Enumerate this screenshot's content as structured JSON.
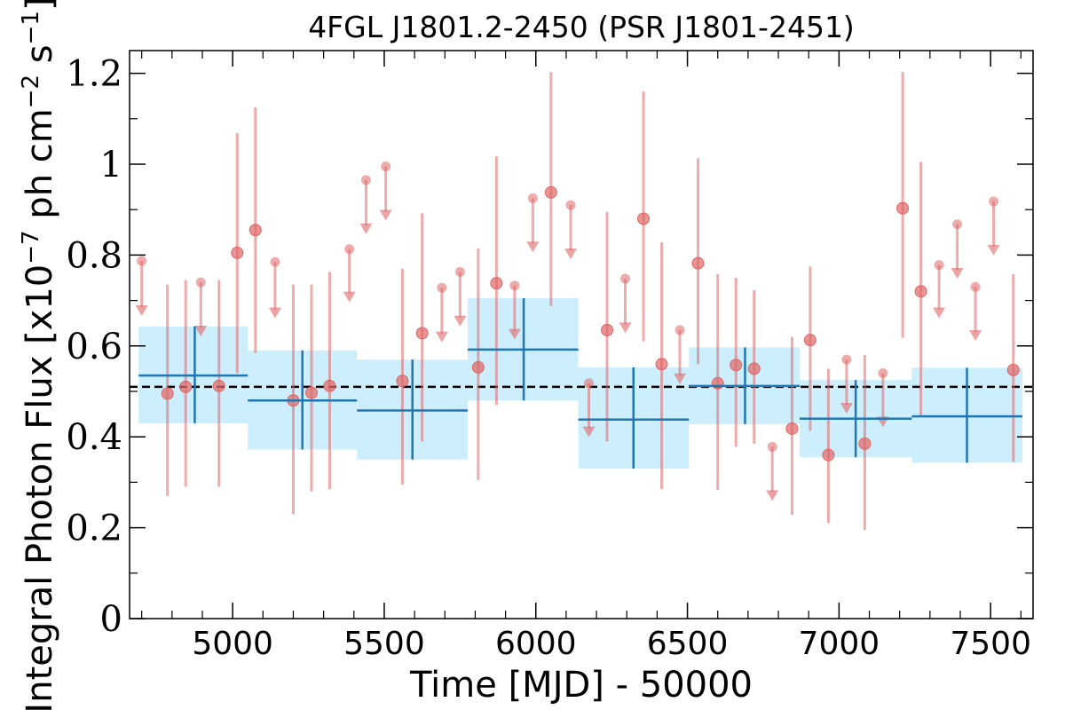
{
  "chart_data": {
    "type": "scatter",
    "title": "4FGL J1801.2-2450 (PSR J1801-2451)",
    "xlabel": "Time [MJD] - 50000",
    "ylabel": {
      "main": "Integral Photon Flux [x10",
      "exp1": "−7",
      "mid": " ph cm",
      "exp2": "−2",
      "mid2": " s",
      "exp3": "−1",
      "end": "]"
    },
    "xlim": [
      4660,
      7640
    ],
    "ylim": [
      0,
      1.25
    ],
    "xticks": [
      {
        "value": 5000,
        "label": "5000"
      },
      {
        "value": 5500,
        "label": "5500"
      },
      {
        "value": 6000,
        "label": "6000"
      },
      {
        "value": 6500,
        "label": "6500"
      },
      {
        "value": 7000,
        "label": "7000"
      },
      {
        "value": 7500,
        "label": "7500"
      }
    ],
    "yticks": [
      {
        "value": 0,
        "label": "0"
      },
      {
        "value": 0.2,
        "label": "0.2"
      },
      {
        "value": 0.4,
        "label": "0.4"
      },
      {
        "value": 0.6,
        "label": "0.6"
      },
      {
        "value": 0.8,
        "label": "0.8"
      },
      {
        "value": 1.0,
        "label": "1"
      },
      {
        "value": 1.2,
        "label": "1.2"
      }
    ],
    "grid": false,
    "average_flux": 0.51,
    "colors": {
      "points": "#e06666",
      "bins_fill": "#cdeefc",
      "bins_line": "#1f77b4",
      "average_line": "#000000"
    },
    "series": [
      {
        "kind": "short-bin points (detections)",
        "points": [
          {
            "x": 4785,
            "y": 0.495,
            "ylo": 0.27,
            "yhi": 0.735
          },
          {
            "x": 4845,
            "y": 0.51,
            "ylo": 0.29,
            "yhi": 0.745
          },
          {
            "x": 4955,
            "y": 0.512,
            "ylo": 0.29,
            "yhi": 0.745
          },
          {
            "x": 5015,
            "y": 0.805,
            "ylo": 0.54,
            "yhi": 1.068
          },
          {
            "x": 5075,
            "y": 0.855,
            "ylo": 0.585,
            "yhi": 1.125
          },
          {
            "x": 5200,
            "y": 0.48,
            "ylo": 0.23,
            "yhi": 0.735
          },
          {
            "x": 5260,
            "y": 0.497,
            "ylo": 0.28,
            "yhi": 0.735
          },
          {
            "x": 5320,
            "y": 0.512,
            "ylo": 0.285,
            "yhi": 0.763
          },
          {
            "x": 5560,
            "y": 0.523,
            "ylo": 0.295,
            "yhi": 0.77
          },
          {
            "x": 5625,
            "y": 0.628,
            "ylo": 0.39,
            "yhi": 0.892
          },
          {
            "x": 5810,
            "y": 0.553,
            "ylo": 0.305,
            "yhi": 0.815
          },
          {
            "x": 5870,
            "y": 0.738,
            "ylo": 0.47,
            "yhi": 1.017
          },
          {
            "x": 6050,
            "y": 0.938,
            "ylo": 0.688,
            "yhi": 1.203
          },
          {
            "x": 6235,
            "y": 0.635,
            "ylo": 0.39,
            "yhi": 0.895
          },
          {
            "x": 6355,
            "y": 0.88,
            "ylo": 0.61,
            "yhi": 1.16
          },
          {
            "x": 6415,
            "y": 0.56,
            "ylo": 0.285,
            "yhi": 0.828
          },
          {
            "x": 6535,
            "y": 0.782,
            "ylo": 0.56,
            "yhi": 1.013
          },
          {
            "x": 6600,
            "y": 0.518,
            "ylo": 0.283,
            "yhi": 0.758
          },
          {
            "x": 6660,
            "y": 0.558,
            "ylo": 0.378,
            "yhi": 0.75
          },
          {
            "x": 6720,
            "y": 0.55,
            "ylo": 0.385,
            "yhi": 0.723
          },
          {
            "x": 6845,
            "y": 0.418,
            "ylo": 0.228,
            "yhi": 0.62
          },
          {
            "x": 6905,
            "y": 0.613,
            "ylo": 0.413,
            "yhi": 0.775
          },
          {
            "x": 6965,
            "y": 0.36,
            "ylo": 0.21,
            "yhi": 0.55
          },
          {
            "x": 7085,
            "y": 0.385,
            "ylo": 0.195,
            "yhi": 0.58
          },
          {
            "x": 7210,
            "y": 0.903,
            "ylo": 0.618,
            "yhi": 1.203
          },
          {
            "x": 7270,
            "y": 0.72,
            "ylo": 0.445,
            "yhi": 1.005
          },
          {
            "x": 7575,
            "y": 0.547,
            "ylo": 0.345,
            "yhi": 0.758
          }
        ]
      },
      {
        "kind": "short-bin upper limits",
        "points": [
          {
            "x": 4700,
            "y": 0.787,
            "limit": 0.67
          },
          {
            "x": 4895,
            "y": 0.74,
            "limit": 0.625
          },
          {
            "x": 5140,
            "y": 0.785,
            "limit": 0.665
          },
          {
            "x": 5385,
            "y": 0.813,
            "limit": 0.7
          },
          {
            "x": 5440,
            "y": 0.965,
            "limit": 0.85
          },
          {
            "x": 5505,
            "y": 0.995,
            "limit": 0.88
          },
          {
            "x": 5690,
            "y": 0.728,
            "limit": 0.612
          },
          {
            "x": 5750,
            "y": 0.763,
            "limit": 0.647
          },
          {
            "x": 5930,
            "y": 0.733,
            "limit": 0.618
          },
          {
            "x": 5990,
            "y": 0.925,
            "limit": 0.81
          },
          {
            "x": 6115,
            "y": 0.91,
            "limit": 0.795
          },
          {
            "x": 6175,
            "y": 0.518,
            "limit": 0.403
          },
          {
            "x": 6295,
            "y": 0.748,
            "limit": 0.632
          },
          {
            "x": 6475,
            "y": 0.635,
            "limit": 0.52
          },
          {
            "x": 6780,
            "y": 0.378,
            "limit": 0.263
          },
          {
            "x": 7025,
            "y": 0.57,
            "limit": 0.455
          },
          {
            "x": 7145,
            "y": 0.54,
            "limit": 0.425
          },
          {
            "x": 7330,
            "y": 0.778,
            "limit": 0.665
          },
          {
            "x": 7390,
            "y": 0.868,
            "limit": 0.752
          },
          {
            "x": 7450,
            "y": 0.73,
            "limit": 0.615
          },
          {
            "x": 7510,
            "y": 0.918,
            "limit": 0.803
          }
        ]
      },
      {
        "kind": "long-bin averages with uncertainty bands",
        "bins": [
          {
            "x0": 4690,
            "x1": 5050,
            "xc": 4875,
            "y": 0.535,
            "ylo": 0.43,
            "yhi": 0.643
          },
          {
            "x0": 5050,
            "x1": 5410,
            "xc": 5230,
            "y": 0.48,
            "ylo": 0.372,
            "yhi": 0.59
          },
          {
            "x0": 5410,
            "x1": 5775,
            "xc": 5593,
            "y": 0.458,
            "ylo": 0.35,
            "yhi": 0.57
          },
          {
            "x0": 5775,
            "x1": 6140,
            "xc": 5960,
            "y": 0.592,
            "ylo": 0.48,
            "yhi": 0.705
          },
          {
            "x0": 6140,
            "x1": 6505,
            "xc": 6322,
            "y": 0.438,
            "ylo": 0.33,
            "yhi": 0.553
          },
          {
            "x0": 6505,
            "x1": 6870,
            "xc": 6690,
            "y": 0.512,
            "ylo": 0.428,
            "yhi": 0.597
          },
          {
            "x0": 6870,
            "x1": 7240,
            "xc": 7055,
            "y": 0.44,
            "ylo": 0.355,
            "yhi": 0.525
          },
          {
            "x0": 7240,
            "x1": 7605,
            "xc": 7422,
            "y": 0.445,
            "ylo": 0.343,
            "yhi": 0.552
          }
        ]
      }
    ]
  }
}
